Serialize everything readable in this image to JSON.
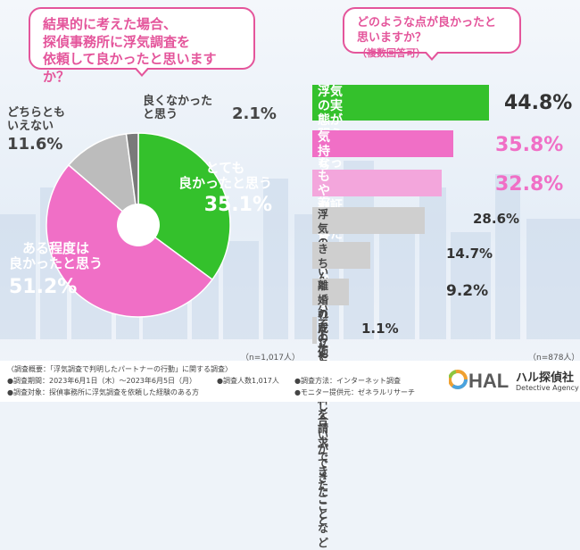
{
  "left": {
    "question": "結果的に考えた場合、\n探偵事務所に浮気調査を\n依頼して良かったと思いますか？",
    "n_note": "（n=1,017人）"
  },
  "right": {
    "question": "どのような点が良かったと思いますか？",
    "question_note": "（複数回答可）",
    "n_note": "（n=878人）"
  },
  "chart_data": [
    {
      "type": "pie",
      "title": "結果的に考えた場合、探偵事務所に浮気調査を依頼して良かったと思いますか？",
      "labels": [
        "とても\n良かったと思う",
        "ある程度は\n良かったと思う",
        "どちらとも\nいえない",
        "良くなかった\nと思う"
      ],
      "values": [
        35.1,
        51.2,
        11.6,
        2.1
      ],
      "display": [
        "35.1%",
        "51.2%",
        "11.6%",
        "2.1%"
      ],
      "colors": [
        "#34c12c",
        "#f06fc6",
        "#bcbcbc",
        "#7a7a7a"
      ]
    },
    {
      "type": "bar",
      "title": "どのような点が良かったと思いますか？（複数回答可）",
      "categories": [
        "浮気の実態が明らかに\nなったこと（証拠を得たこと）",
        "気持ちが整理できたこと",
        "もやもやしているまま\nより一歩前進できたこと",
        "浮気の疑いが晴れたこと",
        "きちんとパートナーと\n話し合いができたこと",
        "離婚の成立や慰謝料を\n請求できたことなど",
        "その他"
      ],
      "values": [
        44.8,
        35.8,
        32.8,
        28.6,
        14.7,
        9.2,
        1.1
      ],
      "display": [
        "44.8%",
        "35.8%",
        "32.8%",
        "28.6%",
        "14.7%",
        "9.2%",
        "1.1%"
      ],
      "colors": [
        "#34c12c",
        "#f06fc6",
        "#f3a6dc",
        "#cfcfcf",
        "#cfcfcf",
        "#cfcfcf",
        "#cfcfcf"
      ],
      "xlim": [
        0,
        44.8
      ]
    }
  ],
  "footer": {
    "survey_overview": "〈調査概要：「浮気調査で判明したパートナーの行動」に関する調査〉",
    "survey_period": "●調査期間：2023年6月1日（木）～2023年6月5日（月）",
    "survey_target": "●調査対象：探偵事務所に浮気調査を依頼した経験のある方",
    "respondents": "●調査人数1,017人",
    "method": "●調査方法：インターネット調査",
    "monitor": "●モニター提供元：ゼネラルリサーチ",
    "logo_mark": "HAL",
    "company_name": "ハル探偵社",
    "company_sub": "Detective Agency"
  }
}
